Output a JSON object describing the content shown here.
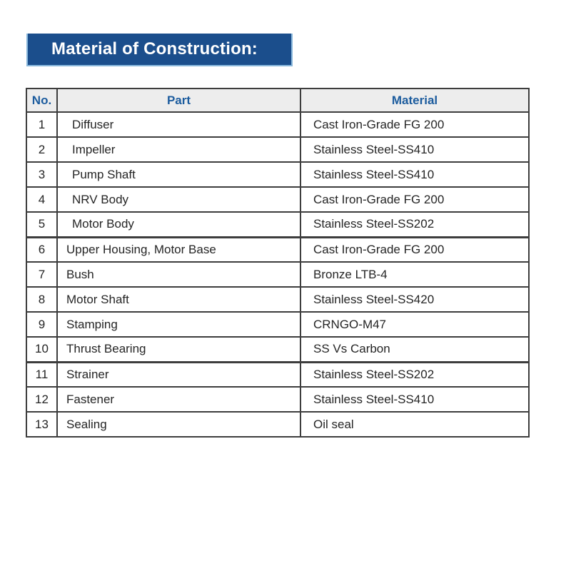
{
  "banner": {
    "title": "Material of Construction:",
    "bg_color": "#1b4e8c",
    "edge_color": "#8ab8dc",
    "text_color": "#ffffff"
  },
  "table": {
    "headers": {
      "no": "No.",
      "part": "Part",
      "material": "Material"
    },
    "header_text_color": "#1c5c9e",
    "header_bg_color": "#ededed",
    "border_color": "#3d3d3d",
    "rows": [
      {
        "no": "1",
        "part": "Diffuser",
        "material": "Cast Iron-Grade FG 200"
      },
      {
        "no": "2",
        "part": "Impeller",
        "material": "Stainless Steel-SS410"
      },
      {
        "no": "3",
        "part": "Pump Shaft",
        "material": "Stainless Steel-SS410"
      },
      {
        "no": "4",
        "part": "NRV Body",
        "material": "Cast Iron-Grade FG 200"
      },
      {
        "no": "5",
        "part": "Motor Body",
        "material": "Stainless Steel-SS202"
      },
      {
        "no": "6",
        "part": "Upper Housing, Motor Base",
        "material": "Cast Iron-Grade FG 200"
      },
      {
        "no": "7",
        "part": "Bush",
        "material": "Bronze LTB-4"
      },
      {
        "no": "8",
        "part": "Motor Shaft",
        "material": "Stainless Steel-SS420"
      },
      {
        "no": "9",
        "part": "Stamping",
        "material": "CRNGO-M47"
      },
      {
        "no": "10",
        "part": "Thrust Bearing",
        "material": "SS Vs Carbon"
      },
      {
        "no": "11",
        "part": "Strainer",
        "material": "Stainless Steel-SS202"
      },
      {
        "no": "12",
        "part": "Fastener",
        "material": "Stainless Steel-SS410"
      },
      {
        "no": "13",
        "part": "Sealing",
        "material": "Oil seal"
      }
    ]
  }
}
